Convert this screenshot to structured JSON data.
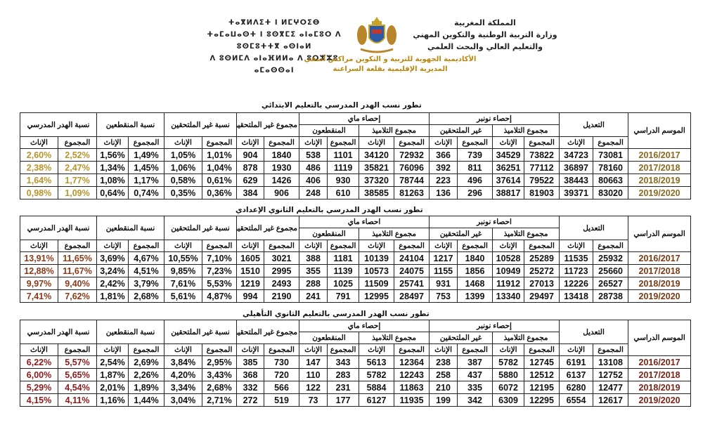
{
  "header": {
    "right_lines": [
      "المملكة المغربية",
      "وزارة التربية الوطنية والتكوين المهني",
      "والتعليم العالي والبحث العلمي"
    ],
    "left_lines": [
      "ⵜⴰⴳⵍⴷⵉⵜ ⵏ ⵍⵎⵖⵔⵉⴱ",
      "ⵜⴰⵎⴰⵡⴰⵙⵜ ⵏ ⵓⵙⴳⵎⵉ ⴰⵏⴰⵎⵓⵔ ⴷ ⵓⵙⵎⵓⵜⵜⴳ ⴰⵙⵏⴰⵍ",
      "ⴷ ⵓⵙⵍⵎⴷ ⴰⵏⴰⴼⵍⵍⴰ ⴷ ⵓⵔⵣⵣⵓ ⴰⵎⴰⵙⵙⴰⵏ"
    ],
    "center_lines": [
      "الأكاديمية الجهوية للتربية و التكوين مراكش آسفي",
      "المديرية الإقليمية بقلعة السراغنة"
    ],
    "emblem": "coat-of-arms-morocco"
  },
  "colors": {
    "header_accent": "#b8860b"
  },
  "tables": [
    {
      "title": "تطور نسب الهدر المدرسي بالتعليم الابتدائي",
      "season_color": "#8a6a1e",
      "rate_color": "#b8942a",
      "headers": {
        "season": "الموسم الدراسي",
        "adjust": "التعديل",
        "nov": "إحصاء نونبر",
        "may": "إحصاء ماي",
        "nonjoin_sum": "مجموع غير الملتحقين و",
        "rate_nonjoin": "نسبة غير الملتحقين",
        "rate_drop": "نسبة المنقطعين",
        "rate_waste": "نسبة الهدر المدرسي",
        "students": "مجموع التلاميذ",
        "nonjoined": "غير الملتحقين",
        "dropouts": "المنقطعون",
        "total": "المجموع",
        "female": "الإناث"
      },
      "rows": [
        [
          "2016/2017",
          "73081",
          "34723",
          "73822",
          "34529",
          "739",
          "366",
          "72932",
          "34120",
          "1101",
          "538",
          "1840",
          "904",
          "1,01%",
          "1,05%",
          "1,49%",
          "1,56%",
          "2,52%",
          "2,60%"
        ],
        [
          "2017/2018",
          "78160",
          "36897",
          "77112",
          "36251",
          "811",
          "392",
          "76096",
          "35821",
          "1119",
          "486",
          "1930",
          "878",
          "1,04%",
          "1,06%",
          "1,45%",
          "1,34%",
          "2,47%",
          "2,38%"
        ],
        [
          "2018/2019",
          "80663",
          "38443",
          "79522",
          "37614",
          "496",
          "223",
          "78744",
          "37320",
          "930",
          "406",
          "1426",
          "629",
          "0,61%",
          "0,58%",
          "1,17%",
          "1,08%",
          "1,77%",
          "1,64%"
        ],
        [
          "2019/2020",
          "83020",
          "39371",
          "81903",
          "38817",
          "296",
          "136",
          "81263",
          "38585",
          "610",
          "248",
          "906",
          "384",
          "0,36%",
          "0,35%",
          "0,74%",
          "0,64%",
          "1,09%",
          "0,98%"
        ]
      ]
    },
    {
      "title": "تطور نسب الهدر المدرسي بالتعليم الثانوي الإعدادي",
      "season_color": "#7a3a14",
      "rate_color": "#8b3a1a",
      "headers": {
        "season": "الموسم الدراسي",
        "adjust": "التعديل",
        "nov": "احصاء نونبر",
        "may": "احصاء ماي",
        "nonjoin_sum": "مجموع غير الملتحقين و",
        "rate_nonjoin": "نسبة غير الملتحقين",
        "rate_drop": "نسبة المنقطعين",
        "rate_waste": "نسبة الهدر المدرسي",
        "students": "مجموع التلاميذ",
        "nonjoined": "غير الملتحقين",
        "dropouts": "المنقطعون",
        "total": "المجموع",
        "female": "الإناث"
      },
      "rows": [
        [
          "2016/2017",
          "25932",
          "11535",
          "25289",
          "10528",
          "1840",
          "1217",
          "24104",
          "10139",
          "1181",
          "388",
          "3021",
          "1605",
          "7,10%",
          "10,55%",
          "4,67%",
          "3,69%",
          "11,65%",
          "13,91%"
        ],
        [
          "2017/2018",
          "25660",
          "11723",
          "25272",
          "10949",
          "1856",
          "1155",
          "24075",
          "10573",
          "1139",
          "355",
          "2995",
          "1510",
          "7,23%",
          "9,85%",
          "4,51%",
          "3,24%",
          "11,67%",
          "12,88%"
        ],
        [
          "2018/2019",
          "26527",
          "12226",
          "27013",
          "11912",
          "1468",
          "931",
          "25741",
          "11509",
          "1025",
          "288",
          "2493",
          "1219",
          "5,53%",
          "7,61%",
          "3,79%",
          "2,42%",
          "9,40%",
          "9,97%"
        ],
        [
          "2019/2020",
          "28738",
          "13418",
          "29497",
          "13340",
          "1399",
          "753",
          "28497",
          "12995",
          "791",
          "241",
          "2190",
          "994",
          "4,87%",
          "5,61%",
          "2,68%",
          "1,81%",
          "7,62%",
          "7,41%"
        ]
      ]
    },
    {
      "title": "تطور نسب الهدر المدرسي بالتعليم الثانوي التأهيلي",
      "season_color": "#7a2418",
      "rate_color": "#8b1a1a",
      "headers": {
        "season": "الموسم الدراسي",
        "adjust": "التعديل",
        "nov": "إحصاء نونبر",
        "may": "إحصاء ماي",
        "nonjoin_sum": "مجموع غير الملتحقين و",
        "rate_nonjoin": "نسبة غير الملتحقين",
        "rate_drop": "نسبة المنقطعين",
        "rate_waste": "نسبة الهدر المدرسي",
        "students": "مجموع التلاميذ",
        "nonjoined": "غير الملتحقين",
        "dropouts": "المنقطعون",
        "total": "المجموع",
        "female": "الإناث"
      },
      "rows": [
        [
          "2016/2017",
          "13108",
          "6191",
          "12745",
          "5782",
          "387",
          "238",
          "12364",
          "5613",
          "343",
          "147",
          "730",
          "385",
          "2,95%",
          "3,84%",
          "2,69%",
          "2,54%",
          "5,57%",
          "6,22%"
        ],
        [
          "2017/2018",
          "12752",
          "6137",
          "12512",
          "5880",
          "437",
          "258",
          "12243",
          "5782",
          "283",
          "110",
          "720",
          "368",
          "3,43%",
          "4,20%",
          "2,26%",
          "1,87%",
          "5,65%",
          "6,00%"
        ],
        [
          "2018/2019",
          "12477",
          "6280",
          "12195",
          "6072",
          "335",
          "210",
          "11863",
          "5884",
          "231",
          "122",
          "566",
          "332",
          "2,68%",
          "3,34%",
          "1,89%",
          "2,01%",
          "4,54%",
          "5,29%"
        ],
        [
          "2019/2020",
          "12617",
          "6554",
          "12295",
          "6309",
          "342",
          "199",
          "11935",
          "6127",
          "177",
          "73",
          "519",
          "272",
          "2,71%",
          "3,04%",
          "1,44%",
          "1,16%",
          "4,11%",
          "4,15%"
        ]
      ]
    }
  ]
}
